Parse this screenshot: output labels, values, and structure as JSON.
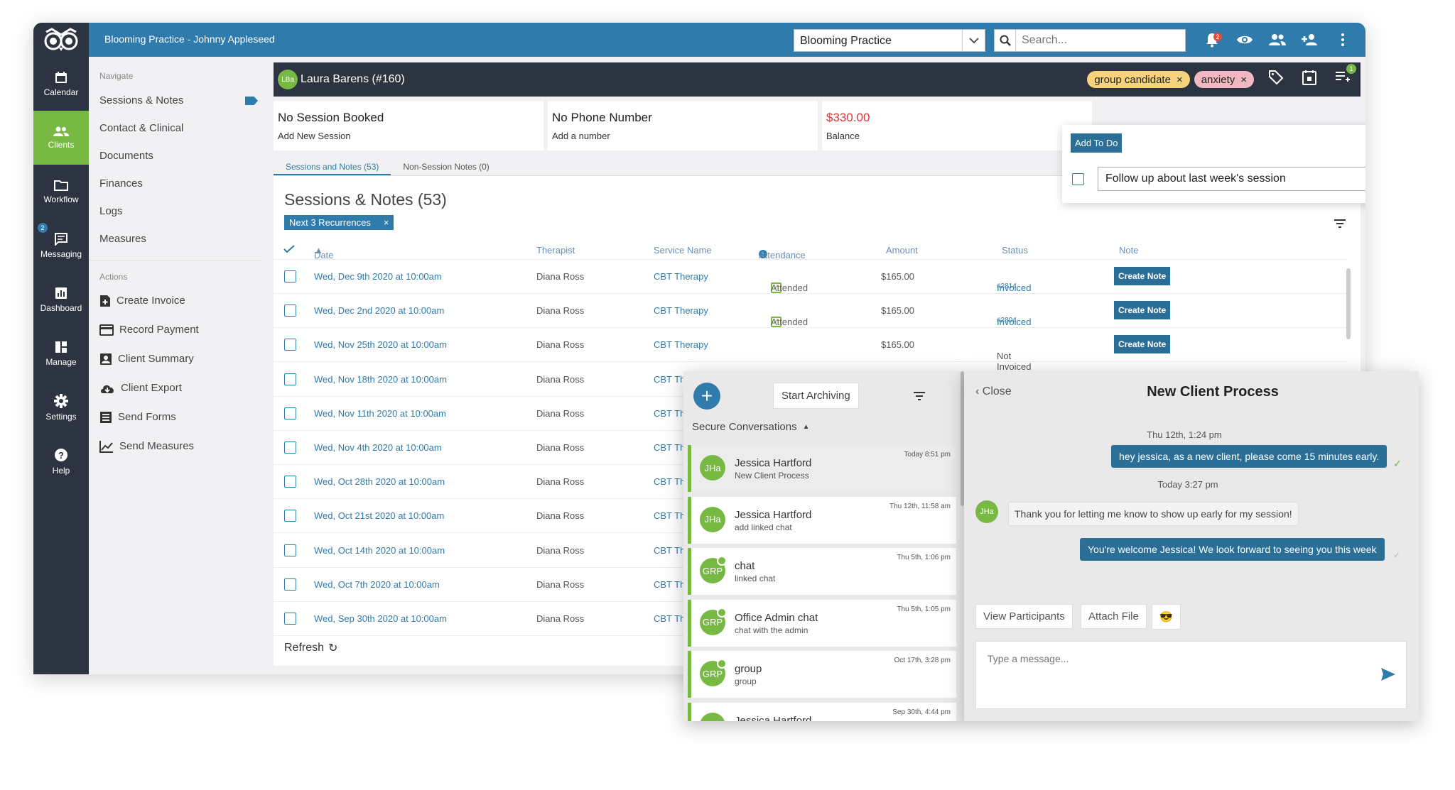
{
  "topbar": {
    "title": "Blooming Practice - Johnny Appleseed",
    "practice_select": "Blooming Practice",
    "search_placeholder": "Search...",
    "notif_count": "2"
  },
  "nav": [
    {
      "label": "Calendar",
      "icon": "calendar-icon"
    },
    {
      "label": "Clients",
      "icon": "clients-icon"
    },
    {
      "label": "Workflow",
      "icon": "workflow-icon"
    },
    {
      "label": "Messaging",
      "icon": "messaging-icon",
      "badge": "2"
    },
    {
      "label": "Dashboard",
      "icon": "dashboard-icon"
    },
    {
      "label": "Manage",
      "icon": "manage-icon"
    },
    {
      "label": "Settings",
      "icon": "settings-icon"
    },
    {
      "label": "Help",
      "icon": "help-icon"
    }
  ],
  "subnav": {
    "navigate_heading": "Navigate",
    "items": [
      "Sessions & Notes",
      "Contact & Clinical",
      "Documents",
      "Finances",
      "Logs",
      "Measures"
    ],
    "actions_heading": "Actions",
    "actions": [
      "Create Invoice",
      "Record Payment",
      "Client Summary",
      "Client Export",
      "Send Forms",
      "Send Measures"
    ]
  },
  "client": {
    "initials": "LBa",
    "name": "Laura Barens (#160)",
    "tags": [
      "group candidate",
      "anxiety"
    ],
    "todo_count": "1"
  },
  "cards": [
    {
      "title": "No Session Booked",
      "sub": "Add New Session"
    },
    {
      "title": "No Phone Number",
      "sub": "Add a number"
    },
    {
      "title": "$330.00",
      "sub": "Balance"
    }
  ],
  "todo": {
    "add_label": "Add To Do",
    "item": "Follow up about last week's session"
  },
  "tabs": [
    "Sessions and Notes (53)",
    "Non-Session Notes (0)"
  ],
  "sessions": {
    "title": "Sessions & Notes (53)",
    "recurrence_filter": "Next 3 Recurrences",
    "columns": [
      "Date",
      "Therapist",
      "Service Name",
      "Attendance",
      "Amount",
      "Status",
      "Note"
    ],
    "rows": [
      {
        "date": "Wed, Dec 9th 2020 at 10:00am",
        "therapist": "Diana Ross",
        "service": "CBT Therapy",
        "attendance": "Attended",
        "amount": "$165.00",
        "status": "Invoiced",
        "invoice": "#2814",
        "note": "Create Note"
      },
      {
        "date": "Wed, Dec 2nd 2020 at 10:00am",
        "therapist": "Diana Ross",
        "service": "CBT Therapy",
        "attendance": "Attended",
        "amount": "$165.00",
        "status": "Invoiced",
        "invoice": "#2804",
        "note": "Create Note"
      },
      {
        "date": "Wed, Nov 25th 2020 at 10:00am",
        "therapist": "Diana Ross",
        "service": "CBT Therapy",
        "attendance": "",
        "amount": "$165.00",
        "status": "Not Invoiced",
        "invoice": "",
        "note": "Create Note"
      },
      {
        "date": "Wed, Nov 18th 2020 at 10:00am",
        "therapist": "Diana Ross",
        "service": "CBT The"
      },
      {
        "date": "Wed, Nov 11th 2020 at 10:00am",
        "therapist": "Diana Ross",
        "service": "CBT The"
      },
      {
        "date": "Wed, Nov 4th 2020 at 10:00am",
        "therapist": "Diana Ross",
        "service": "CBT The"
      },
      {
        "date": "Wed, Oct 28th 2020 at 10:00am",
        "therapist": "Diana Ross",
        "service": "CBT The"
      },
      {
        "date": "Wed, Oct 21st 2020 at 10:00am",
        "therapist": "Diana Ross",
        "service": "CBT The"
      },
      {
        "date": "Wed, Oct 14th 2020 at 10:00am",
        "therapist": "Diana Ross",
        "service": "CBT The"
      },
      {
        "date": "Wed, Oct 7th 2020 at 10:00am",
        "therapist": "Diana Ross",
        "service": "CBT The"
      },
      {
        "date": "Wed, Sep 30th 2020 at 10:00am",
        "therapist": "Diana Ross",
        "service": "CBT The"
      }
    ],
    "refresh": "Refresh"
  },
  "conversations": {
    "archive_label": "Start Archiving",
    "heading": "Secure Conversations",
    "items": [
      {
        "initials": "JHa",
        "name": "Jessica Hartford",
        "sub": "New Client Process",
        "time": "Today 8:51 pm"
      },
      {
        "initials": "JHa",
        "name": "Jessica Hartford",
        "sub": "add linked chat",
        "time": "Thu 12th, 11:58 am"
      },
      {
        "initials": "GRP",
        "name": "chat",
        "sub": "linked chat",
        "time": "Thu 5th, 1:06 pm"
      },
      {
        "initials": "GRP",
        "name": "Office Admin chat",
        "sub": "chat with the admin",
        "time": "Thu 5th, 1:05 pm"
      },
      {
        "initials": "GRP",
        "name": "group",
        "sub": "group",
        "time": "Oct 17th, 3:28 pm"
      },
      {
        "initials": "JHa",
        "name": "Jessica Hartford",
        "sub": "",
        "time": "Sep 30th, 4:44 pm"
      }
    ]
  },
  "chat": {
    "close_label": "Close",
    "title": "New Client Process",
    "stamp1": "Thu 12th, 1:24 pm",
    "msg1": "hey jessica, as a new client, please come 15 minutes early.",
    "stamp2": "Today 3:27 pm",
    "sender_initials": "JHa",
    "msg2": "Thank you for letting me know to show up early for my session!",
    "msg3": "You're welcome Jessica! We look forward to seeing you this week",
    "view_participants": "View Participants",
    "attach_file": "Attach File",
    "emoji": "😎",
    "placeholder": "Type a message..."
  },
  "colors": {
    "accent": "#2f7bab",
    "green": "#78b943",
    "dark": "#2c3442",
    "alert": "#e84a3b"
  }
}
